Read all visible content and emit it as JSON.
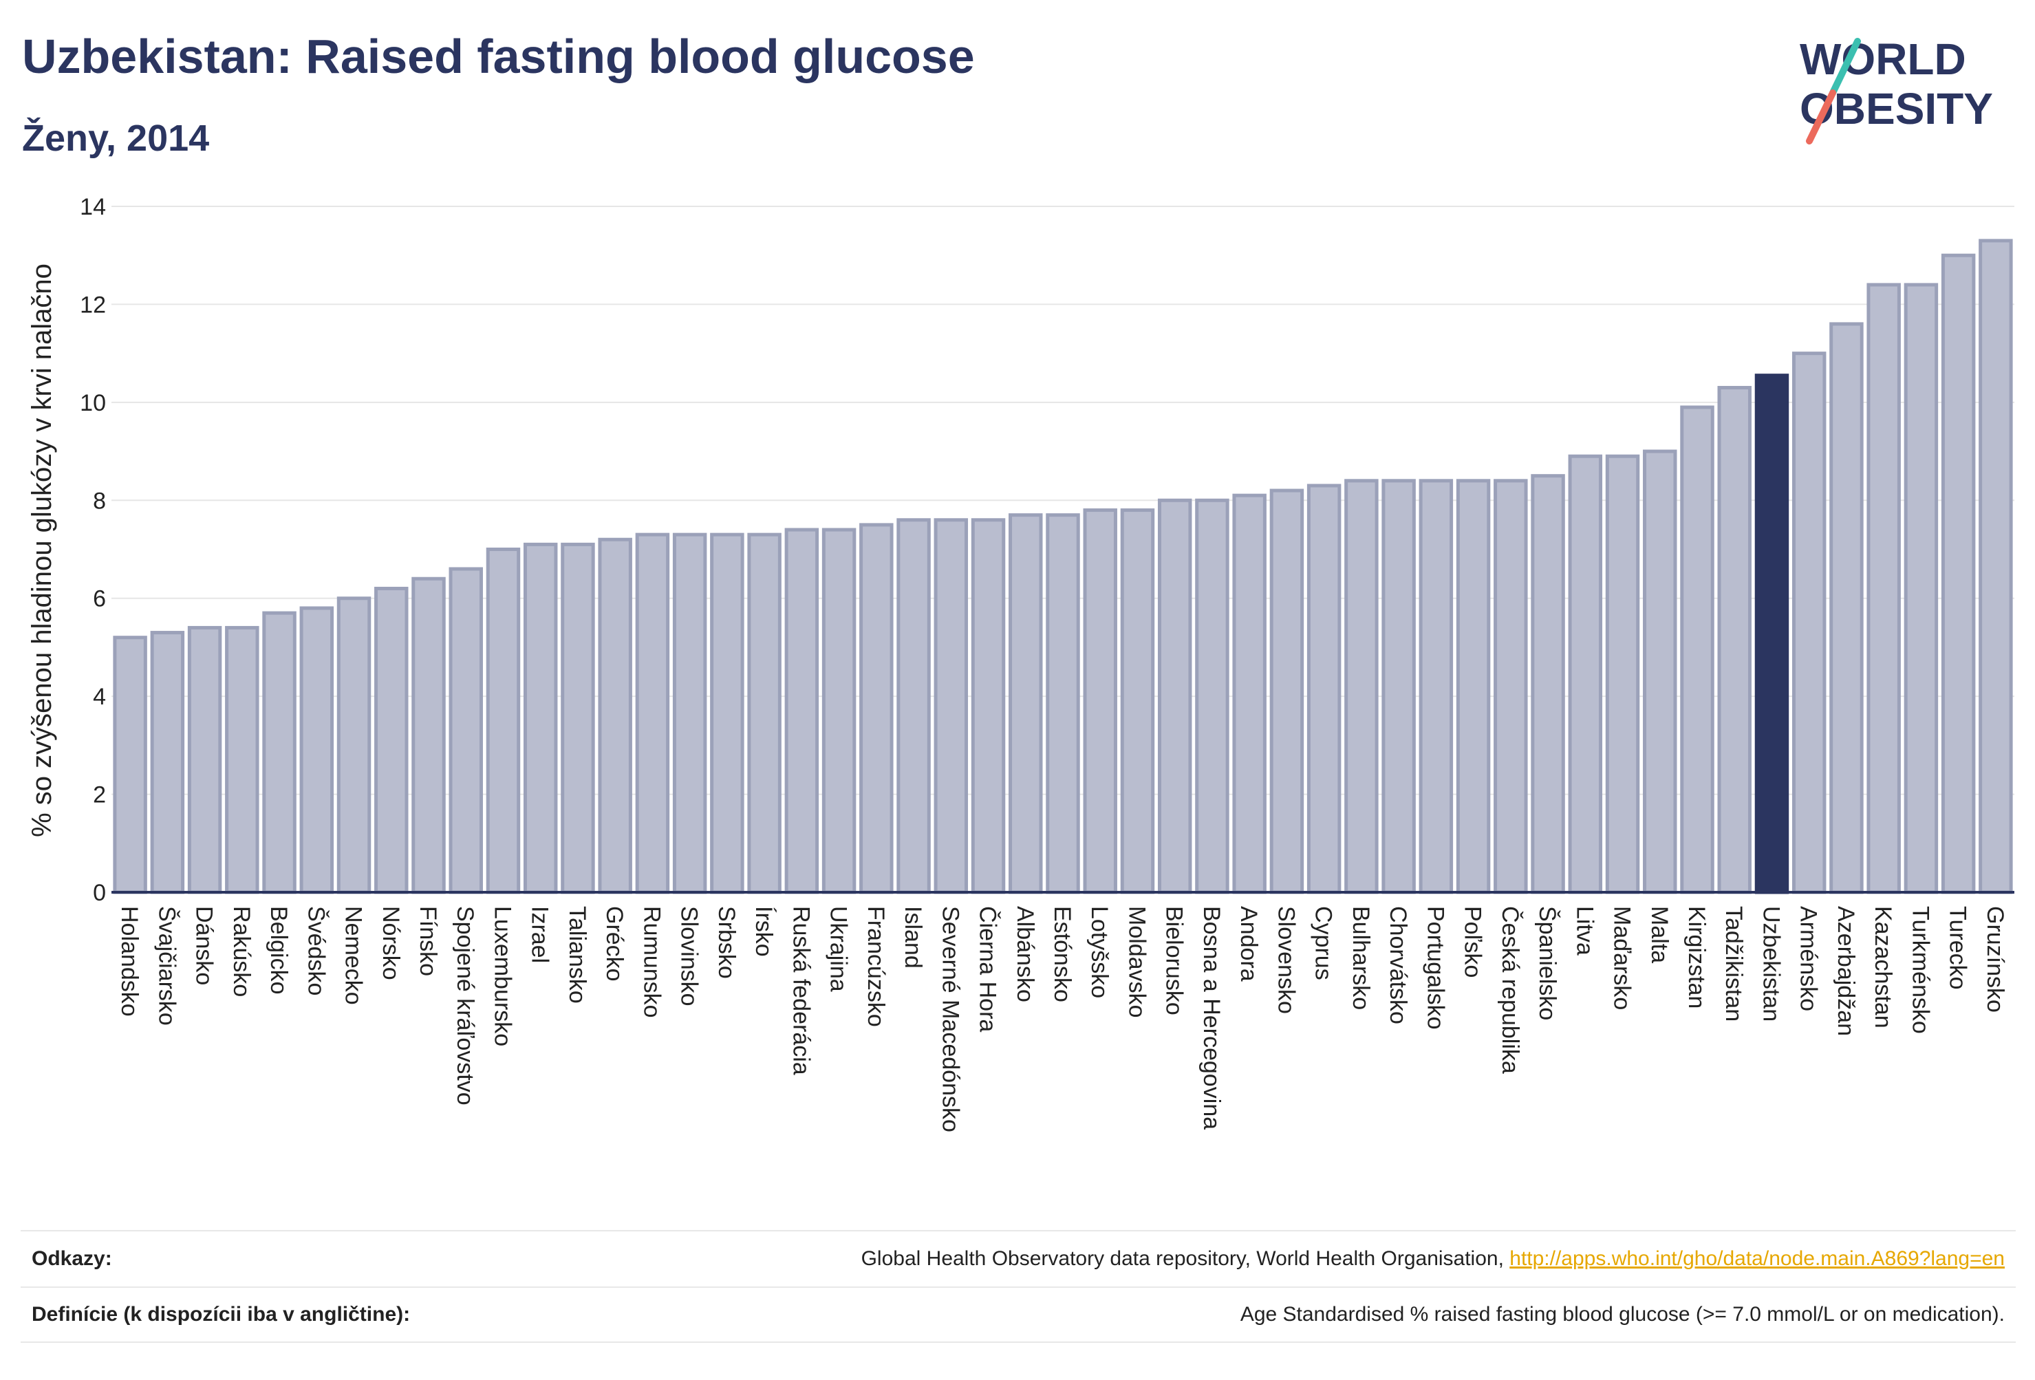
{
  "header": {
    "title": "Uzbekistan: Raised fasting blood glucose",
    "subtitle": "Ženy, 2014"
  },
  "logo": {
    "line1": "WORLD",
    "line2": "OBESITY"
  },
  "colors": {
    "bar": "#b9bdcf",
    "bar_stroke": "#9ba1b9",
    "highlight": "#2b3560",
    "text": "#2b3560",
    "accent_teal": "#3bbfb0",
    "accent_coral": "#ec6a5c"
  },
  "chart_data": {
    "type": "bar",
    "title": "Uzbekistan: Raised fasting blood glucose",
    "subtitle": "Ženy, 2014",
    "xlabel": "",
    "ylabel": "% so zvýšenou hladinou glukózy v krvi nalačno",
    "ylim": [
      0,
      14
    ],
    "yticks": [
      0,
      2,
      4,
      6,
      8,
      10,
      12,
      14
    ],
    "grid": true,
    "highlight": "Uzbekistan",
    "categories": [
      "Holandsko",
      "Švajčiarsko",
      "Dánsko",
      "Rakúsko",
      "Belgicko",
      "Švédsko",
      "Nemecko",
      "Nórsko",
      "Fínsko",
      "Spojené kráľovstvo",
      "Luxembursko",
      "Izrael",
      "Taliansko",
      "Grécko",
      "Rumunsko",
      "Slovinsko",
      "Srbsko",
      "Írsko",
      "Ruská federácia",
      "Ukrajina",
      "Francúzsko",
      "Island",
      "Severné Macedónsko",
      "Čierna Hora",
      "Albánsko",
      "Estónsko",
      "Lotyšsko",
      "Moldavsko",
      "Bielorusko",
      "Bosna a Hercegovina",
      "Andora",
      "Slovensko",
      "Cyprus",
      "Bulharsko",
      "Chorvátsko",
      "Portugalsko",
      "Poľsko",
      "Česká republika",
      "Španielsko",
      "Litva",
      "Maďarsko",
      "Malta",
      "Kirgizstan",
      "Tadžikistan",
      "Uzbekistan",
      "Arménsko",
      "Azerbajdžan",
      "Kazachstan",
      "Turkménsko",
      "Turecko",
      "Gruzínsko"
    ],
    "values": [
      5.2,
      5.3,
      5.4,
      5.4,
      5.7,
      5.8,
      6.0,
      6.2,
      6.4,
      6.6,
      7.0,
      7.1,
      7.1,
      7.2,
      7.3,
      7.3,
      7.3,
      7.3,
      7.4,
      7.4,
      7.5,
      7.6,
      7.6,
      7.6,
      7.7,
      7.7,
      7.8,
      7.8,
      8.0,
      8.0,
      8.1,
      8.2,
      8.3,
      8.4,
      8.4,
      8.4,
      8.4,
      8.4,
      8.5,
      8.9,
      8.9,
      9.0,
      9.9,
      10.3,
      10.55,
      11.0,
      11.6,
      12.4,
      12.4,
      13.0,
      13.3
    ]
  },
  "footer": {
    "references_label": "Odkazy:",
    "references_text": "Global Health Observatory data repository, World Health Organisation, ",
    "references_link": "http://apps.who.int/gho/data/node.main.A869?lang=en",
    "definitions_label": "Definície (k dispozícii iba v angličtine):",
    "definitions_text": "Age Standardised % raised fasting blood glucose (>= 7.0 mmol/L or on medication)."
  }
}
